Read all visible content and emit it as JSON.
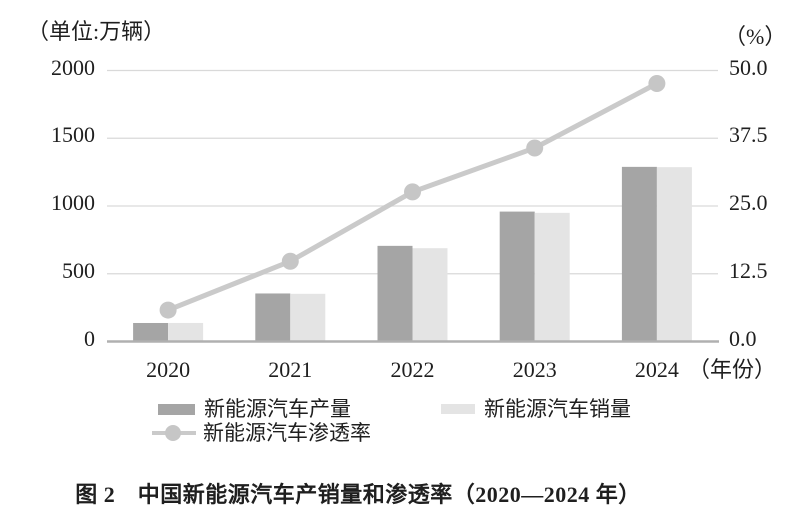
{
  "chart": {
    "unit_label_left": "（单位:万辆）",
    "unit_label_right": "（%）",
    "x_axis_unit": "（年份）"
  },
  "caption": "图 2　中国新能源汽车产销量和渗透率（2020—2024 年）",
  "colors": {
    "production_bar": "#a5a5a5",
    "sales_bar": "#e4e4e4",
    "penetration_line": "#cacaca",
    "penetration_marker": "#c6c6c6",
    "gridline": "#d9d9d9",
    "axis": "#b0b0b0",
    "text": "#1f1f1f"
  },
  "chart_data": {
    "type": "bar+line",
    "title": "中国新能源汽车产销量和渗透率（2020—2024 年）",
    "categories": [
      "2020",
      "2021",
      "2022",
      "2023",
      "2024"
    ],
    "series": [
      {
        "name": "新能源汽车产量",
        "type": "bar",
        "axis": "left",
        "unit": "万辆",
        "values": [
          136.6,
          354.5,
          705.8,
          958.7,
          1288.8
        ]
      },
      {
        "name": "新能源汽车销量",
        "type": "bar",
        "axis": "left",
        "unit": "万辆",
        "values": [
          136.7,
          352.1,
          688.7,
          949.5,
          1286.6
        ]
      },
      {
        "name": "新能源汽车渗透率",
        "type": "line",
        "axis": "right",
        "unit": "%",
        "values": [
          5.8,
          14.8,
          27.6,
          35.7,
          47.6
        ]
      }
    ],
    "left_axis": {
      "title": "单位:万辆",
      "tick_values": [
        0,
        500,
        1000,
        1500,
        2000
      ],
      "tick_labels": [
        "0",
        "500",
        "1000",
        "1500",
        "2000"
      ],
      "range": [
        0,
        2000
      ]
    },
    "right_axis": {
      "title": "%",
      "tick_values": [
        0,
        12.5,
        25,
        37.5,
        50
      ],
      "tick_labels": [
        "0.0",
        "12.5",
        "25.0",
        "37.5",
        "50.0"
      ],
      "range": [
        0,
        50
      ]
    },
    "x_axis": {
      "title": "年份"
    },
    "grid": true,
    "legend_position": "bottom"
  }
}
